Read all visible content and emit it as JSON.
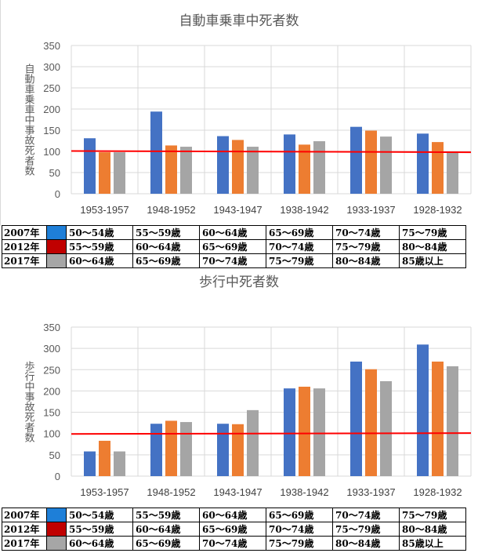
{
  "charts": [
    {
      "id": "top",
      "chart_data": {
        "type": "bar",
        "title": "自動車乗車中死者数",
        "ylabel": "自動車乗車中事故死者数",
        "xlabel": "",
        "categories": [
          "1953-1957",
          "1948-1952",
          "1943-1947",
          "1938-1942",
          "1933-1937",
          "1928-1932"
        ],
        "series": [
          {
            "name": "2007年",
            "color": "#4472C4",
            "values": [
              131,
              194,
              136,
              140,
              158,
              142
            ]
          },
          {
            "name": "2012年",
            "color": "#ED7D31",
            "values": [
              98,
              114,
              127,
              116,
              149,
              122
            ]
          },
          {
            "name": "2017年",
            "color": "#A5A5A5",
            "values": [
              98,
              111,
              111,
              124,
              135,
              100
            ]
          }
        ],
        "ylim": [
          0,
          350
        ],
        "yticks": [
          0,
          50,
          100,
          150,
          200,
          250,
          300,
          350
        ],
        "reference_line": {
          "color": "#FF0000",
          "start": 101,
          "end": 98
        },
        "grid": true
      }
    },
    {
      "id": "bottom",
      "chart_data": {
        "type": "bar",
        "title": "歩行中死者数",
        "ylabel": "歩行中事故死者数",
        "xlabel": "",
        "categories": [
          "1953-1957",
          "1948-1952",
          "1943-1947",
          "1938-1942",
          "1933-1937",
          "1928-1932"
        ],
        "series": [
          {
            "name": "2007年",
            "color": "#4472C4",
            "values": [
              58,
              123,
              123,
              206,
              269,
              309
            ]
          },
          {
            "name": "2012年",
            "color": "#ED7D31",
            "values": [
              83,
              130,
              122,
              210,
              251,
              269
            ]
          },
          {
            "name": "2017年",
            "color": "#A5A5A5",
            "values": [
              58,
              127,
              155,
              206,
              223,
              258
            ]
          }
        ],
        "ylim": [
          0,
          350
        ],
        "yticks": [
          0,
          50,
          100,
          150,
          200,
          250,
          300,
          350
        ],
        "reference_line": {
          "color": "#FF0000",
          "start": 99,
          "end": 101
        },
        "grid": true
      }
    }
  ],
  "legend": {
    "rows": [
      {
        "year": "2007年",
        "color": "#1E7FD8",
        "ranges": [
          "50～54歳",
          "55～59歳",
          "60～64歳",
          "65～69歳",
          "70～74歳",
          "75～79歳"
        ]
      },
      {
        "year": "2012年",
        "color": "#C00000",
        "ranges": [
          "55～59歳",
          "60～64歳",
          "65～69歳",
          "70～74歳",
          "75～79歳",
          "80～84歳"
        ]
      },
      {
        "year": "2017年",
        "color": "#A6A6A6",
        "ranges": [
          "60～64歳",
          "65～69歳",
          "70～74歳",
          "75～79歳",
          "80～84歳",
          "85歳以上"
        ]
      }
    ]
  }
}
